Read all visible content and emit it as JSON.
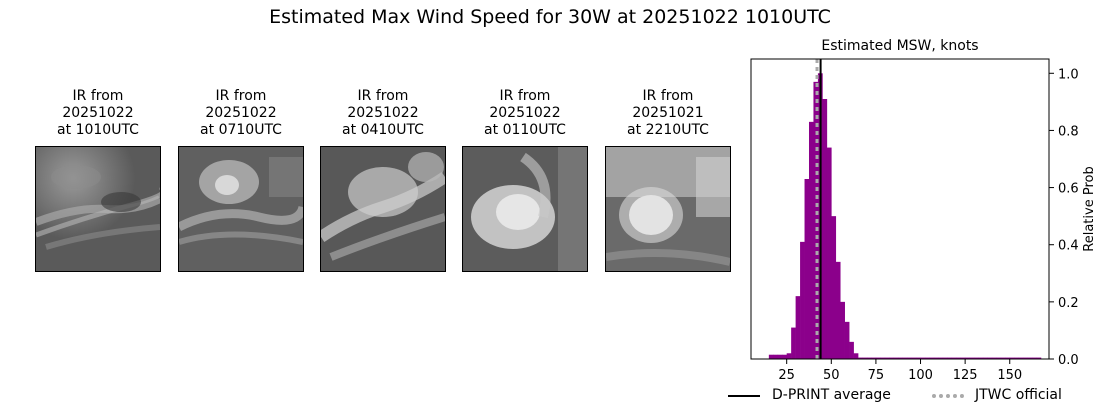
{
  "suptitle": "Estimated Max Wind Speed for 30W at 20251022 1010UTC",
  "ir_panels": [
    {
      "line1": "IR from",
      "line2": "20251022",
      "line3": "at 1010UTC"
    },
    {
      "line1": "IR from",
      "line2": "20251022",
      "line3": "at 0710UTC"
    },
    {
      "line1": "IR from",
      "line2": "20251022",
      "line3": "at 0410UTC"
    },
    {
      "line1": "IR from",
      "line2": "20251022",
      "line3": "at 0110UTC"
    },
    {
      "line1": "IR from",
      "line2": "20251021",
      "line3": "at 2210UTC"
    }
  ],
  "chart_data": {
    "type": "bar",
    "title": "Estimated MSW, knots",
    "xlabel": "",
    "ylabel": "Relative Prob",
    "xlim": [
      5,
      172
    ],
    "ylim": [
      0,
      1.05
    ],
    "xticks": [
      25,
      50,
      75,
      100,
      125,
      150
    ],
    "yticks": [
      0.0,
      0.2,
      0.4,
      0.6,
      0.8,
      1.0
    ],
    "ytick_labels": [
      "0.0",
      "0.2",
      "0.4",
      "0.6",
      "0.8",
      "1.0"
    ],
    "y_axis_side": "right",
    "bar_color": "#8b008b",
    "bin_width": 2.5,
    "bins": [
      {
        "x": 15,
        "y": 0.015
      },
      {
        "x": 17.5,
        "y": 0.015
      },
      {
        "x": 20,
        "y": 0.015
      },
      {
        "x": 22.5,
        "y": 0.015
      },
      {
        "x": 25,
        "y": 0.02
      },
      {
        "x": 27.5,
        "y": 0.11
      },
      {
        "x": 30,
        "y": 0.22
      },
      {
        "x": 32.5,
        "y": 0.41
      },
      {
        "x": 35,
        "y": 0.63
      },
      {
        "x": 37.5,
        "y": 0.83
      },
      {
        "x": 40,
        "y": 0.97
      },
      {
        "x": 42.5,
        "y": 1.0
      },
      {
        "x": 45,
        "y": 0.91
      },
      {
        "x": 47.5,
        "y": 0.74
      },
      {
        "x": 50,
        "y": 0.5
      },
      {
        "x": 52.5,
        "y": 0.34
      },
      {
        "x": 55,
        "y": 0.2
      },
      {
        "x": 57.5,
        "y": 0.13
      },
      {
        "x": 60,
        "y": 0.06
      },
      {
        "x": 62.5,
        "y": 0.02
      },
      {
        "x": 65,
        "y": 0.005
      },
      {
        "x": 67.5,
        "y": 0.005
      },
      {
        "x": 70,
        "y": 0.005
      },
      {
        "x": 72.5,
        "y": 0.005
      },
      {
        "x": 75,
        "y": 0.005
      },
      {
        "x": 77.5,
        "y": 0.005
      },
      {
        "x": 80,
        "y": 0.005
      },
      {
        "x": 82.5,
        "y": 0.005
      },
      {
        "x": 85,
        "y": 0.005
      },
      {
        "x": 87.5,
        "y": 0.005
      },
      {
        "x": 90,
        "y": 0.005
      },
      {
        "x": 92.5,
        "y": 0.005
      },
      {
        "x": 95,
        "y": 0.005
      },
      {
        "x": 97.5,
        "y": 0.005
      },
      {
        "x": 100,
        "y": 0.005
      },
      {
        "x": 102.5,
        "y": 0.005
      },
      {
        "x": 105,
        "y": 0.005
      },
      {
        "x": 107.5,
        "y": 0.005
      },
      {
        "x": 110,
        "y": 0.005
      },
      {
        "x": 112.5,
        "y": 0.005
      },
      {
        "x": 115,
        "y": 0.005
      },
      {
        "x": 117.5,
        "y": 0.005
      },
      {
        "x": 120,
        "y": 0.005
      },
      {
        "x": 122.5,
        "y": 0.005
      },
      {
        "x": 125,
        "y": 0.005
      },
      {
        "x": 127.5,
        "y": 0.005
      },
      {
        "x": 130,
        "y": 0.005
      },
      {
        "x": 132.5,
        "y": 0.005
      },
      {
        "x": 135,
        "y": 0.005
      },
      {
        "x": 137.5,
        "y": 0.005
      },
      {
        "x": 140,
        "y": 0.005
      },
      {
        "x": 142.5,
        "y": 0.005
      },
      {
        "x": 145,
        "y": 0.005
      },
      {
        "x": 147.5,
        "y": 0.005
      },
      {
        "x": 150,
        "y": 0.005
      },
      {
        "x": 152.5,
        "y": 0.005
      },
      {
        "x": 155,
        "y": 0.005
      },
      {
        "x": 157.5,
        "y": 0.005
      },
      {
        "x": 160,
        "y": 0.005
      },
      {
        "x": 162.5,
        "y": 0.005
      },
      {
        "x": 165,
        "y": 0.005
      }
    ],
    "dprint_average": 44,
    "jtwc_official": 42,
    "legend": {
      "placement": "below",
      "entries": [
        {
          "label": "D-PRINT average",
          "color": "#000000",
          "style": "solid"
        },
        {
          "label": "JTWC official",
          "color": "#aaaaaa",
          "style": "dotted"
        }
      ]
    }
  }
}
